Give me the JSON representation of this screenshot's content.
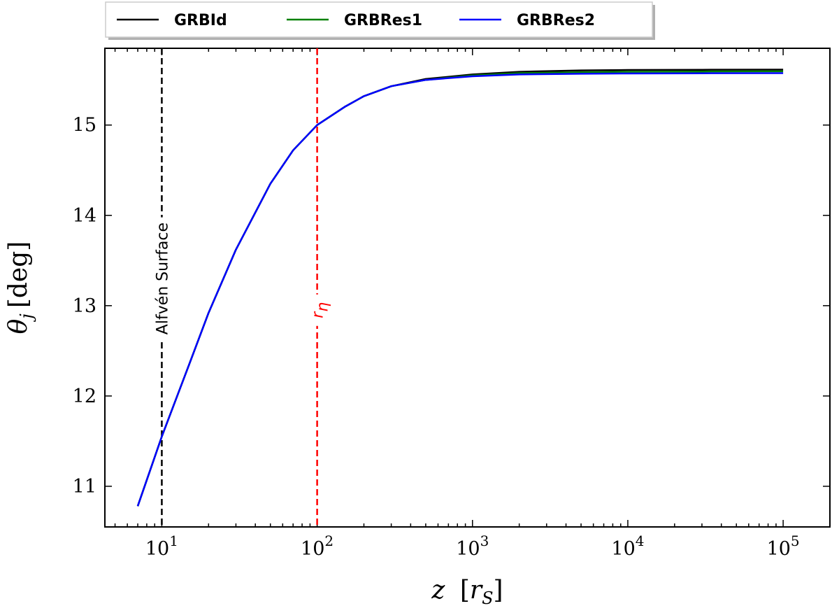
{
  "chart_data": {
    "type": "line",
    "xscale": "log",
    "xlabel_main": "z",
    "xlabel_unit_base": "r",
    "xlabel_unit_sub": "S",
    "ylabel_main": "θ",
    "ylabel_sub": "j",
    "ylabel_unit": "[deg]",
    "xlim": [
      4.3,
      200000
    ],
    "ylim": [
      10.55,
      15.85
    ],
    "x_major_ticks": [
      10,
      100,
      1000,
      10000,
      100000
    ],
    "x_tick_labels": [
      {
        "base": "10",
        "exp": "1"
      },
      {
        "base": "10",
        "exp": "2"
      },
      {
        "base": "10",
        "exp": "3"
      },
      {
        "base": "10",
        "exp": "4"
      },
      {
        "base": "10",
        "exp": "5"
      }
    ],
    "y_ticks": [
      11,
      12,
      13,
      14,
      15
    ],
    "y_tick_labels": [
      "11",
      "12",
      "13",
      "14",
      "15"
    ],
    "grid": false,
    "legend_placement": "top-center-outside",
    "series": [
      {
        "name": "GRBId",
        "color": "#000000",
        "x": [
          7,
          10,
          15,
          20,
          30,
          50,
          70,
          100,
          150,
          200,
          300,
          500,
          1000,
          2000,
          5000,
          10000,
          30000,
          100000
        ],
        "y": [
          10.78,
          11.55,
          12.35,
          12.92,
          13.62,
          14.35,
          14.72,
          15.0,
          15.2,
          15.32,
          15.43,
          15.51,
          15.56,
          15.59,
          15.605,
          15.61,
          15.612,
          15.614
        ]
      },
      {
        "name": "GRBRes1",
        "color": "#008000",
        "x": [
          7,
          10,
          15,
          20,
          30,
          50,
          70,
          100,
          150,
          200,
          300,
          500,
          1000,
          2000,
          5000,
          10000,
          30000,
          100000
        ],
        "y": [
          10.78,
          11.55,
          12.35,
          12.92,
          13.62,
          14.35,
          14.72,
          15.0,
          15.2,
          15.32,
          15.43,
          15.5,
          15.55,
          15.575,
          15.585,
          15.59,
          15.593,
          15.595
        ]
      },
      {
        "name": "GRBRes2",
        "color": "#0000ff",
        "x": [
          7,
          10,
          15,
          20,
          30,
          50,
          70,
          100,
          150,
          200,
          300,
          500,
          1000,
          2000,
          5000,
          10000,
          30000,
          100000
        ],
        "y": [
          10.78,
          11.55,
          12.35,
          12.92,
          13.62,
          14.35,
          14.72,
          15.0,
          15.2,
          15.32,
          15.43,
          15.5,
          15.54,
          15.56,
          15.568,
          15.571,
          15.573,
          15.575
        ]
      }
    ],
    "vlines": [
      {
        "x": 10,
        "color": "#000000",
        "label": "Alfvén Surface",
        "label_y": 13.3
      },
      {
        "x": 100,
        "color": "#ff0000",
        "label_base": "r",
        "label_sub": "η",
        "label_y": 12.95
      }
    ]
  }
}
